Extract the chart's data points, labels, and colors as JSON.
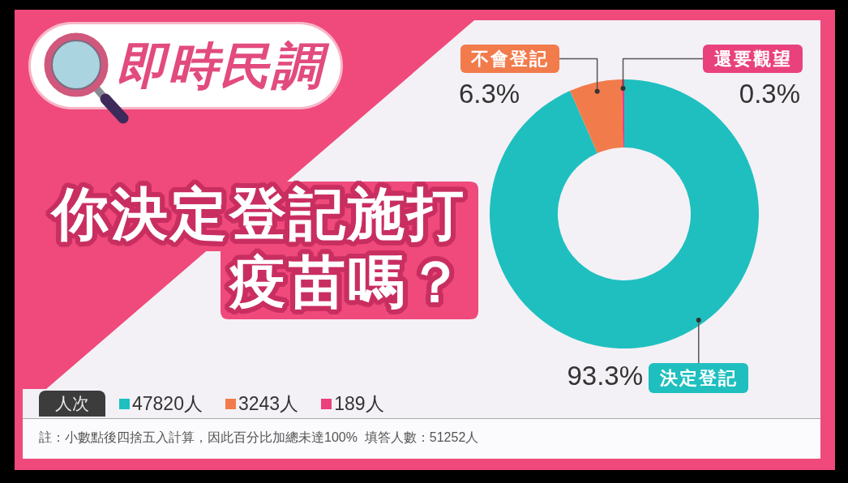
{
  "chart_data": {
    "type": "donut",
    "subtitle": "即時民調",
    "title": "你決定登記施打疫苗嗎？",
    "categories": [
      "決定登記",
      "不會登記",
      "還要觀望"
    ],
    "values": [
      93.3,
      6.3,
      0.3
    ],
    "colors": [
      "#1fbfbf",
      "#f27b4c",
      "#e9417b"
    ],
    "value_labels": [
      "93.3%",
      "6.3%",
      "0.3%"
    ],
    "legend_title": "人次",
    "annotations": [
      "47820人",
      "3243人",
      "189人",
      "註：小數點後四捨五入計算，因此百分比加總未達100%  填答人數：51252人"
    ]
  }
}
